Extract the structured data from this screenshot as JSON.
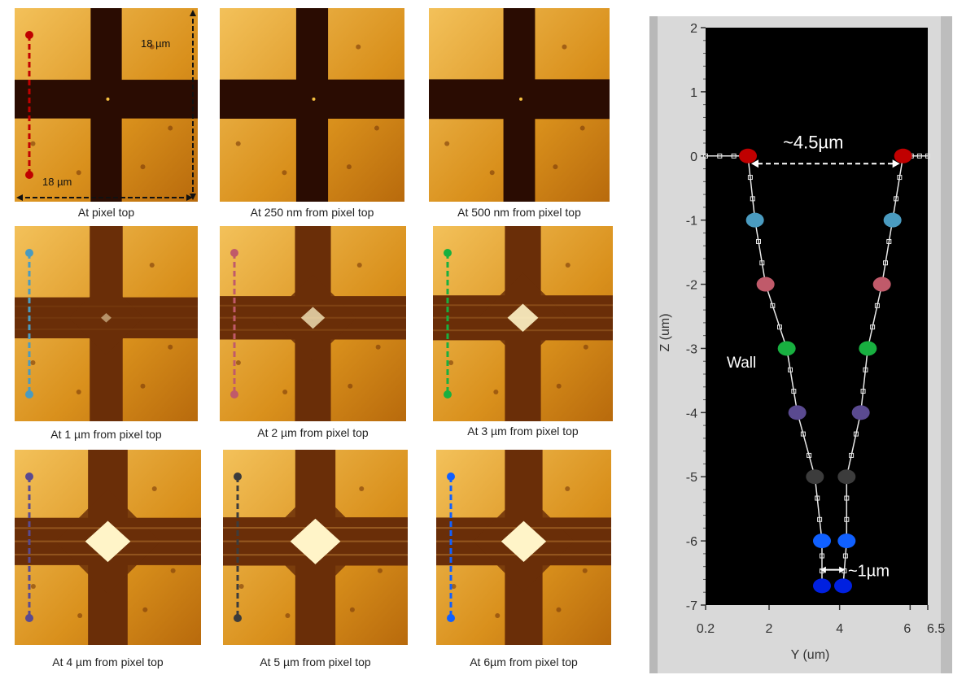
{
  "colors": {
    "red": "#c00000",
    "teal": "#4a9bc0",
    "rose": "#c05a6a",
    "green": "#18b040",
    "purple": "#5a4a90",
    "dark": "#3c3c3c",
    "blue": "#1060ff",
    "navy": "#0020e0"
  },
  "panels": [
    {
      "caption": "At pixel top",
      "level": 0.0,
      "marker_top": "red",
      "marker_bottom": "red",
      "dim_vertical": "18 µm",
      "dim_horizontal": "18 µm"
    },
    {
      "caption": "At 250 nm from pixel top",
      "level": 0.05
    },
    {
      "caption": "At 500 nm from pixel top",
      "level": 0.1
    },
    {
      "caption": "At 1 µm from pixel top",
      "level": 0.2,
      "marker_top": "teal",
      "marker_bottom": "teal"
    },
    {
      "caption": "At 2 µm from pixel top",
      "level": 0.45,
      "marker_top": "rose",
      "marker_bottom": "rose"
    },
    {
      "caption": "At 3 µm from pixel top",
      "level": 0.6,
      "marker_top": "green",
      "marker_bottom": "green"
    },
    {
      "caption": "At  4 µm from pixel top",
      "level": 0.85,
      "marker_top": "purple",
      "marker_bottom": "purple"
    },
    {
      "caption": "At 5 µm from pixel top",
      "level": 0.95,
      "marker_top": "dark",
      "marker_bottom": "dark"
    },
    {
      "caption": "At  6µm from pixel top",
      "level": 0.9,
      "marker_top": "blue",
      "marker_bottom": "blue"
    }
  ],
  "chart_data": {
    "type": "scatter",
    "title": "",
    "xlabel": "Y (um)",
    "ylabel": "Z (um)",
    "xlim": [
      0.2,
      6.5
    ],
    "ylim": [
      -7,
      2
    ],
    "x_ticks": [
      "0.2",
      "2",
      "4",
      "6",
      "6.5"
    ],
    "y_ticks": [
      "2",
      "1",
      "0",
      "-1",
      "-2",
      "-3",
      "-4",
      "-5",
      "-6",
      "-7"
    ],
    "series": [
      {
        "color": "red",
        "points": [
          [
            1.4,
            0.0
          ],
          [
            5.8,
            0.0
          ]
        ]
      },
      {
        "color": "teal",
        "points": [
          [
            1.6,
            -1.0
          ],
          [
            5.5,
            -1.0
          ]
        ]
      },
      {
        "color": "rose",
        "points": [
          [
            1.9,
            -2.0
          ],
          [
            5.2,
            -2.0
          ]
        ]
      },
      {
        "color": "green",
        "points": [
          [
            2.5,
            -3.0
          ],
          [
            4.8,
            -3.0
          ]
        ]
      },
      {
        "color": "purple",
        "points": [
          [
            2.8,
            -4.0
          ],
          [
            4.6,
            -4.0
          ]
        ]
      },
      {
        "color": "dark",
        "points": [
          [
            3.3,
            -5.0
          ],
          [
            4.2,
            -5.0
          ]
        ]
      },
      {
        "color": "blue",
        "points": [
          [
            3.5,
            -6.0
          ],
          [
            4.2,
            -6.0
          ]
        ]
      },
      {
        "color": "navy",
        "points": [
          [
            3.5,
            -6.7
          ],
          [
            4.1,
            -6.7
          ]
        ]
      }
    ],
    "left_wall": [
      [
        0.2,
        0.0
      ],
      [
        1.4,
        0.0
      ],
      [
        1.6,
        -1.0
      ],
      [
        1.9,
        -2.0
      ],
      [
        2.5,
        -3.0
      ],
      [
        2.8,
        -4.0
      ],
      [
        3.3,
        -5.0
      ],
      [
        3.5,
        -6.0
      ],
      [
        3.5,
        -6.7
      ]
    ],
    "right_wall": [
      [
        4.1,
        -6.7
      ],
      [
        4.2,
        -6.0
      ],
      [
        4.2,
        -5.0
      ],
      [
        4.6,
        -4.0
      ],
      [
        4.8,
        -3.0
      ],
      [
        5.2,
        -2.0
      ],
      [
        5.5,
        -1.0
      ],
      [
        5.8,
        0.0
      ],
      [
        6.5,
        0.0
      ]
    ],
    "annotations": {
      "top_width": "~4.5µm",
      "bottom_width": "~1µm",
      "wall_label": "Wall"
    }
  }
}
